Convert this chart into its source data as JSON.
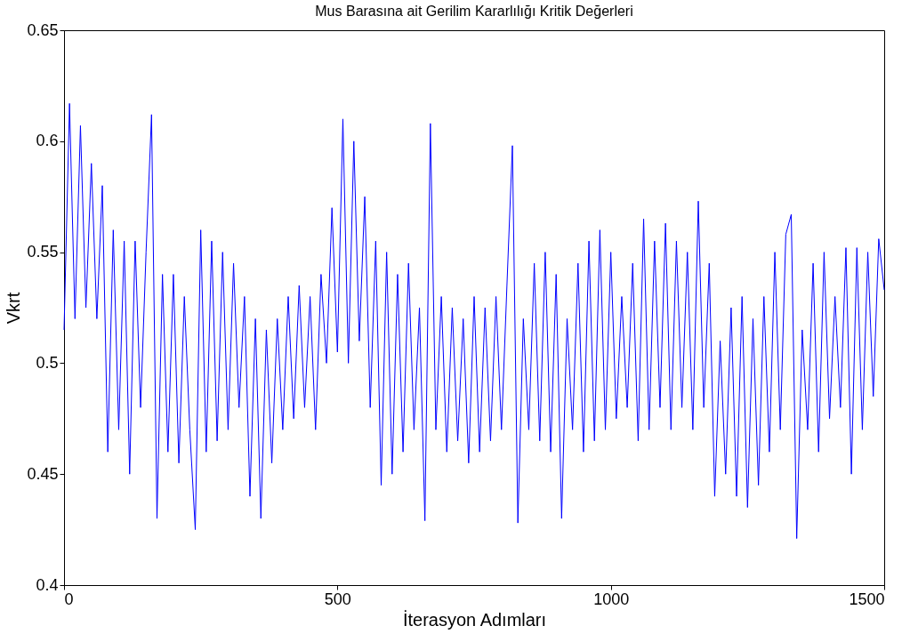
{
  "chart_data": {
    "type": "line",
    "title": "Mus Barasına ait Gerilim Kararlılığı Kritik Değerleri",
    "xlabel": "İterasyon Adımları",
    "ylabel": "Vkrt",
    "x": [
      0,
      10,
      20,
      30,
      40,
      50,
      60,
      70,
      80,
      90,
      100,
      110,
      120,
      130,
      140,
      150,
      160,
      170,
      180,
      190,
      200,
      210,
      220,
      230,
      240,
      250,
      260,
      270,
      280,
      290,
      300,
      310,
      320,
      330,
      340,
      350,
      360,
      370,
      380,
      390,
      400,
      410,
      420,
      430,
      440,
      450,
      460,
      470,
      480,
      490,
      500,
      510,
      520,
      530,
      540,
      550,
      560,
      570,
      580,
      590,
      600,
      610,
      620,
      630,
      640,
      650,
      660,
      670,
      680,
      690,
      700,
      710,
      720,
      730,
      740,
      750,
      760,
      770,
      780,
      790,
      800,
      810,
      820,
      830,
      840,
      850,
      860,
      870,
      880,
      890,
      900,
      910,
      920,
      930,
      940,
      950,
      960,
      970,
      980,
      990,
      1000,
      1010,
      1020,
      1030,
      1040,
      1050,
      1060,
      1070,
      1080,
      1090,
      1100,
      1110,
      1120,
      1130,
      1140,
      1150,
      1160,
      1170,
      1180,
      1190,
      1200,
      1210,
      1220,
      1230,
      1240,
      1250,
      1260,
      1270,
      1280,
      1290,
      1300,
      1310,
      1320,
      1330,
      1340,
      1350,
      1360,
      1370,
      1380,
      1390,
      1400,
      1410,
      1420,
      1430,
      1440,
      1450,
      1460,
      1470,
      1480,
      1490,
      1500
    ],
    "series": [
      {
        "color": "#0000ff",
        "values": [
          0.515,
          0.617,
          0.52,
          0.607,
          0.525,
          0.59,
          0.52,
          0.58,
          0.46,
          0.56,
          0.47,
          0.555,
          0.45,
          0.555,
          0.48,
          0.55,
          0.612,
          0.43,
          0.54,
          0.46,
          0.54,
          0.455,
          0.53,
          0.47,
          0.425,
          0.56,
          0.46,
          0.555,
          0.465,
          0.55,
          0.47,
          0.545,
          0.48,
          0.53,
          0.44,
          0.52,
          0.43,
          0.515,
          0.455,
          0.52,
          0.47,
          0.53,
          0.475,
          0.535,
          0.48,
          0.53,
          0.47,
          0.54,
          0.5,
          0.57,
          0.505,
          0.61,
          0.5,
          0.6,
          0.51,
          0.575,
          0.48,
          0.555,
          0.445,
          0.55,
          0.45,
          0.54,
          0.46,
          0.545,
          0.47,
          0.525,
          0.429,
          0.608,
          0.47,
          0.53,
          0.46,
          0.525,
          0.465,
          0.52,
          0.455,
          0.53,
          0.46,
          0.525,
          0.465,
          0.53,
          0.47,
          0.535,
          0.598,
          0.428,
          0.52,
          0.47,
          0.545,
          0.465,
          0.55,
          0.46,
          0.54,
          0.43,
          0.52,
          0.47,
          0.545,
          0.46,
          0.555,
          0.465,
          0.56,
          0.47,
          0.55,
          0.475,
          0.53,
          0.48,
          0.545,
          0.465,
          0.565,
          0.47,
          0.555,
          0.48,
          0.563,
          0.47,
          0.555,
          0.48,
          0.55,
          0.47,
          0.573,
          0.48,
          0.545,
          0.44,
          0.51,
          0.45,
          0.525,
          0.44,
          0.53,
          0.435,
          0.52,
          0.445,
          0.53,
          0.46,
          0.55,
          0.47,
          0.558,
          0.567,
          0.421,
          0.515,
          0.47,
          0.545,
          0.46,
          0.55,
          0.475,
          0.53,
          0.48,
          0.552,
          0.45,
          0.552,
          0.47,
          0.55,
          0.485,
          0.556,
          0.533
        ]
      }
    ],
    "xlim": [
      0,
      1500
    ],
    "xticks": [
      0,
      500,
      1000,
      1500
    ],
    "ylim": [
      0.4,
      0.65
    ],
    "yticks": [
      0.4,
      0.45,
      0.5,
      0.55,
      0.6,
      0.65
    ],
    "grid": false,
    "marker": "none",
    "line_style": "solid"
  }
}
